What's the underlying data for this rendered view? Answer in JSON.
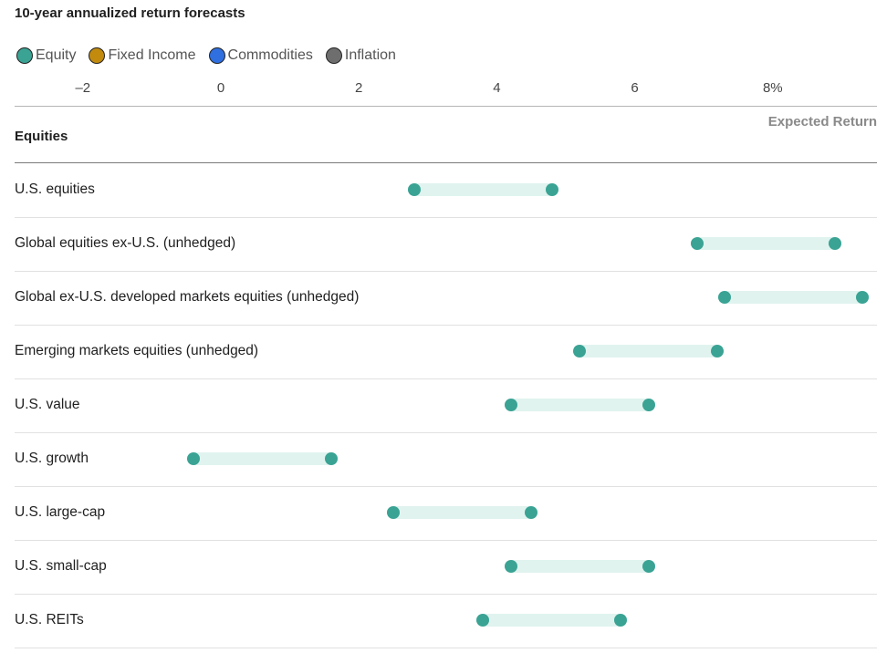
{
  "title": "10-year annualized return forecasts",
  "legend": [
    {
      "label": "Equity",
      "color": "#3aa394"
    },
    {
      "label": "Fixed Income",
      "color": "#c28b0e"
    },
    {
      "label": "Commodities",
      "color": "#2f6fe0"
    },
    {
      "label": "Inflation",
      "color": "#6e6e6e"
    }
  ],
  "expected_return_label": "Expected Return",
  "section_label": "Equities",
  "chart_data": {
    "type": "range-dot",
    "title": "10-year annualized return forecasts",
    "xlabel": "Expected Return",
    "xlim": [
      -2.9,
      9.6
    ],
    "ticks": [
      {
        "value": -2,
        "label": "–2"
      },
      {
        "value": 0,
        "label": "0"
      },
      {
        "value": 2,
        "label": "2"
      },
      {
        "value": 4,
        "label": "4"
      },
      {
        "value": 6,
        "label": "6"
      },
      {
        "value": 8,
        "label": "8%"
      }
    ],
    "series_color": "#3aa394",
    "band_color": "#e0f3ef",
    "rows": [
      {
        "label": "U.S. equities",
        "low": 2.8,
        "high": 4.8
      },
      {
        "label": "Global equities ex-U.S. (unhedged)",
        "low": 6.9,
        "high": 8.9
      },
      {
        "label": "Global ex-U.S. developed markets equities (unhedged)",
        "low": 7.3,
        "high": 9.3
      },
      {
        "label": "Emerging markets equities (unhedged)",
        "low": 5.2,
        "high": 7.2
      },
      {
        "label": "U.S. value",
        "low": 4.2,
        "high": 6.2
      },
      {
        "label": "U.S. growth",
        "low": -0.4,
        "high": 1.6
      },
      {
        "label": "U.S. large-cap",
        "low": 2.5,
        "high": 4.5
      },
      {
        "label": "U.S. small-cap",
        "low": 4.2,
        "high": 6.2
      },
      {
        "label": "U.S. REITs",
        "low": 3.8,
        "high": 5.8
      }
    ]
  }
}
